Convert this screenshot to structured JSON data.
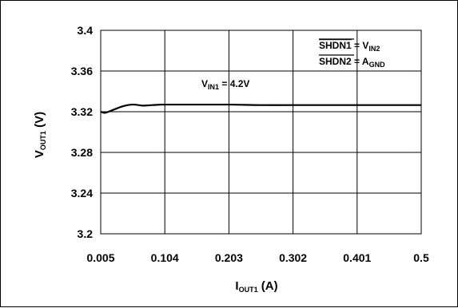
{
  "chart_data": {
    "type": "line",
    "title": "",
    "x": [
      0.005,
      0.012,
      0.025,
      0.04,
      0.055,
      0.07,
      0.085,
      0.104,
      0.15,
      0.203,
      0.25,
      0.302,
      0.35,
      0.401,
      0.45,
      0.5
    ],
    "y": [
      3.32,
      3.319,
      3.322,
      3.3255,
      3.327,
      3.326,
      3.3265,
      3.327,
      3.327,
      3.327,
      3.3265,
      3.3265,
      3.3265,
      3.3265,
      3.3265,
      3.3265
    ],
    "xticks": [
      "0.005",
      "0.104",
      "0.203",
      "0.302",
      "0.401",
      "0.5"
    ],
    "yticks": [
      "3.2",
      "3.24",
      "3.28",
      "3.32",
      "3.36",
      "3.4"
    ],
    "xlim": [
      0.005,
      0.5
    ],
    "ylim": [
      3.2,
      3.4
    ],
    "xlabel": {
      "main": "I",
      "sub": "OUT1",
      "unit": " (A)"
    },
    "ylabel": {
      "main": "V",
      "sub": "OUT1",
      "unit": " (V)"
    },
    "grid": true,
    "annotations": {
      "vin": {
        "main": "V",
        "sub": "IN1",
        "rest": " = 4.2V"
      },
      "shdn1": {
        "name": "SHDN1",
        "eq": " = V",
        "sub": "IN2"
      },
      "shdn2": {
        "name": "SHDN2",
        "eq": " = A",
        "sub": "GND"
      }
    },
    "colors": {
      "line": "#000000",
      "grid": "#000000"
    }
  }
}
